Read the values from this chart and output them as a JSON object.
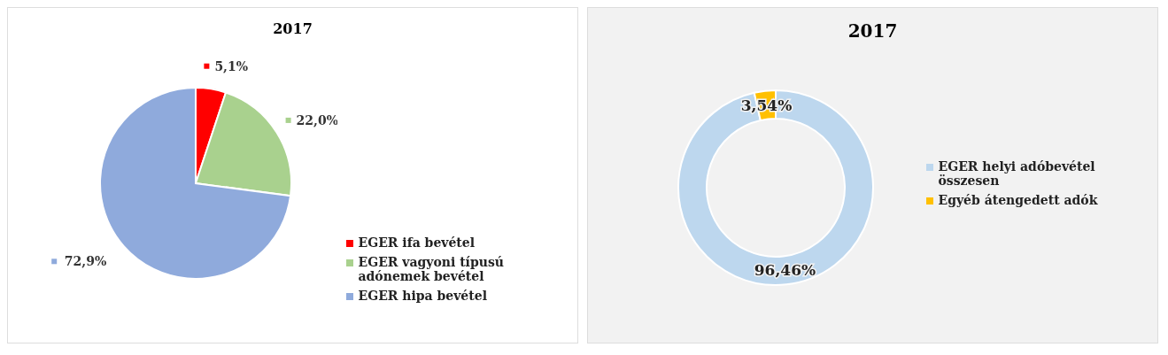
{
  "chart_data": [
    {
      "type": "pie",
      "title": "2017",
      "categories": [
        "EGER ifa bevétel",
        "EGER vagyoni típusú adónemek bevétel",
        "EGER hipa bevétel"
      ],
      "values": [
        5.1,
        22.0,
        72.9
      ],
      "colors": [
        "#ff0000",
        "#a9d18e",
        "#8faadc"
      ],
      "value_labels": [
        "5,1%",
        "22,0%",
        "72,9%"
      ],
      "legend": "bottom right"
    },
    {
      "type": "donut",
      "title": "2017",
      "categories": [
        "EGER helyi adóbevétel összesen",
        "Egyéb átengedett adók"
      ],
      "values": [
        96.46,
        3.54
      ],
      "colors": [
        "#bdd7ee",
        "#ffc000"
      ],
      "value_labels": [
        "96,46%",
        "3,54%"
      ],
      "legend": "right"
    }
  ]
}
